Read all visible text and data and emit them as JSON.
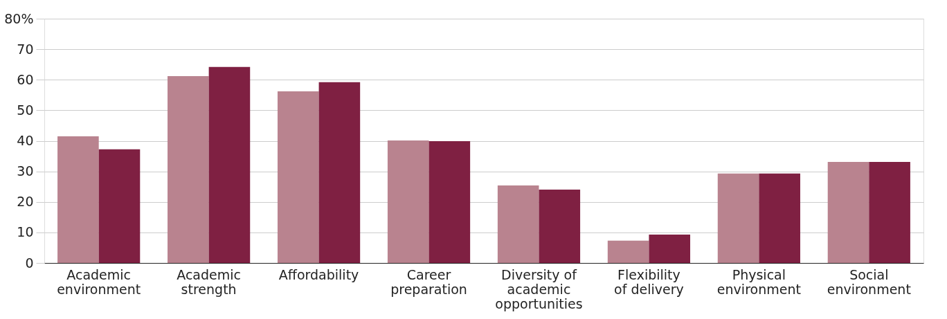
{
  "chart_data": {
    "type": "bar",
    "categories": [
      "Academic environment",
      "Academic strength",
      "Affordability",
      "Career preparation",
      "Diversity of academic opportunities",
      "Flexibility of delivery",
      "Physical environment",
      "Social environment"
    ],
    "series": [
      {
        "color": "#b9838f",
        "values": [
          41.5,
          61.2,
          56.2,
          40.1,
          25.4,
          7.3,
          29.3,
          33.1
        ]
      },
      {
        "color": "#7f2042",
        "values": [
          37.2,
          64.2,
          59.2,
          39.9,
          24.0,
          9.3,
          29.3,
          33.1
        ]
      }
    ],
    "ylim": [
      0,
      80
    ],
    "yticks": [
      0,
      10,
      20,
      30,
      40,
      50,
      60,
      70,
      {
        "value": 80,
        "label": "80%"
      }
    ],
    "grid": "y"
  }
}
